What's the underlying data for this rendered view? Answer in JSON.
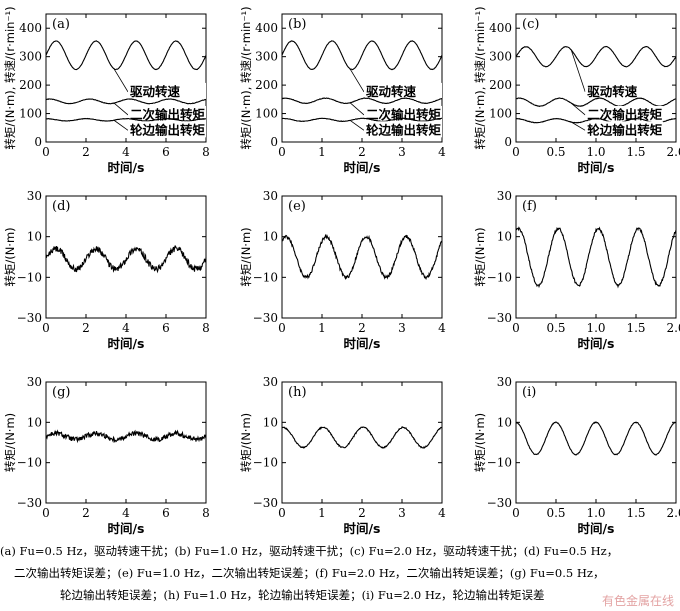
{
  "chart_data": [
    {
      "type": "line",
      "panel_label": "(a)",
      "xlabel": "时间/s",
      "ylabel": "转矩/(N·m), 转速/(r·min⁻¹)",
      "xlim": [
        0,
        8
      ],
      "ylim": [
        0,
        450
      ],
      "xticks": [
        "0",
        "2",
        "4",
        "6",
        "8"
      ],
      "yticks": [
        "0",
        "100",
        "200",
        "300",
        "400"
      ],
      "series": [
        {
          "name": "驱动转速",
          "kind": "sine",
          "offset": 305,
          "amplitude": 50,
          "freq": 0.5,
          "phase": 0
        },
        {
          "name": "二次输出转矩",
          "kind": "sine",
          "offset": 143,
          "amplitude": 8,
          "freq": 0.5,
          "phase": 1.0
        },
        {
          "name": "轮边输出转矩",
          "kind": "sine",
          "offset": 78,
          "amplitude": 4,
          "freq": 0.5,
          "phase": 1.5
        }
      ]
    },
    {
      "type": "line",
      "panel_label": "(b)",
      "xlabel": "时间/s",
      "ylabel": "转矩/(N·m), 转速/(r·min⁻¹)",
      "xlim": [
        0,
        4
      ],
      "ylim": [
        0,
        450
      ],
      "xticks": [
        "0",
        "1",
        "2",
        "3",
        "4"
      ],
      "yticks": [
        "0",
        "100",
        "200",
        "300",
        "400"
      ],
      "series": [
        {
          "name": "驱动转速",
          "kind": "sine",
          "offset": 305,
          "amplitude": 50,
          "freq": 1.0,
          "phase": 0
        },
        {
          "name": "二次输出转矩",
          "kind": "sine",
          "offset": 145,
          "amplitude": 9,
          "freq": 1.0,
          "phase": 1.0
        },
        {
          "name": "轮边输出转矩",
          "kind": "sine",
          "offset": 78,
          "amplitude": 5,
          "freq": 1.0,
          "phase": 1.5
        }
      ]
    },
    {
      "type": "line",
      "panel_label": "(c)",
      "xlabel": "时间/s",
      "ylabel": "转矩/(N·m), 转速/(r·min⁻¹)",
      "xlim": [
        0,
        2
      ],
      "ylim": [
        0,
        450
      ],
      "xticks": [
        "0",
        "0.5",
        "1.0",
        "1.5",
        "2.0"
      ],
      "yticks": [
        "0",
        "100",
        "200",
        "300",
        "400"
      ],
      "series": [
        {
          "name": "驱动转速",
          "kind": "sine",
          "offset": 300,
          "amplitude": 35,
          "freq": 2.0,
          "phase": 0
        },
        {
          "name": "二次输出转矩",
          "kind": "sine",
          "offset": 140,
          "amplitude": 14,
          "freq": 2.0,
          "phase": 1.0
        },
        {
          "name": "轮边输出转矩",
          "kind": "sine",
          "offset": 75,
          "amplitude": 7,
          "freq": 2.0,
          "phase": 1.5
        }
      ]
    },
    {
      "type": "line",
      "panel_label": "(d)",
      "xlabel": "时间/s",
      "ylabel": "转矩/(N·m)",
      "xlim": [
        0,
        8
      ],
      "ylim": [
        -30,
        30
      ],
      "xticks": [
        "0",
        "2",
        "4",
        "6",
        "8"
      ],
      "yticks": [
        "-30",
        "-10",
        "10",
        "30"
      ],
      "series": [
        {
          "name": "",
          "kind": "sine",
          "offset": -1,
          "amplitude": 5,
          "freq": 0.5,
          "phase": 0,
          "noise": 1.5
        }
      ]
    },
    {
      "type": "line",
      "panel_label": "(e)",
      "xlabel": "时间/s",
      "ylabel": "转矩/(N·m)",
      "xlim": [
        0,
        4
      ],
      "ylim": [
        -30,
        30
      ],
      "xticks": [
        "0",
        "1",
        "2",
        "3",
        "4"
      ],
      "yticks": [
        "-30",
        "-10",
        "10",
        "30"
      ],
      "series": [
        {
          "name": "",
          "kind": "sine",
          "offset": 0,
          "amplitude": 10,
          "freq": 1.0,
          "phase": 0.9,
          "noise": 0.8
        }
      ]
    },
    {
      "type": "line",
      "panel_label": "(f)",
      "xlabel": "时间/s",
      "ylabel": "转矩/(N·m)",
      "xlim": [
        0,
        2
      ],
      "ylim": [
        -30,
        30
      ],
      "xticks": [
        "0",
        "0.5",
        "1.0",
        "1.5",
        "2.0"
      ],
      "yticks": [
        "-30",
        "-10",
        "10",
        "30"
      ],
      "series": [
        {
          "name": "",
          "kind": "sine",
          "offset": 0,
          "amplitude": 14,
          "freq": 2.0,
          "phase": 1.2,
          "noise": 0.6
        }
      ]
    },
    {
      "type": "line",
      "panel_label": "(g)",
      "xlabel": "时间/s",
      "ylabel": "转矩/(N·m)",
      "xlim": [
        0,
        8
      ],
      "ylim": [
        -30,
        30
      ],
      "xticks": [
        "0",
        "2",
        "4",
        "6",
        "8"
      ],
      "yticks": [
        "-30",
        "-10",
        "10",
        "30"
      ],
      "series": [
        {
          "name": "",
          "kind": "sine",
          "offset": 3,
          "amplitude": 1.5,
          "freq": 0.5,
          "phase": 0,
          "noise": 1.2
        }
      ]
    },
    {
      "type": "line",
      "panel_label": "(h)",
      "xlabel": "时间/s",
      "ylabel": "转矩/(N·m)",
      "xlim": [
        0,
        4
      ],
      "ylim": [
        -30,
        30
      ],
      "xticks": [
        "0",
        "1",
        "2",
        "3",
        "4"
      ],
      "yticks": [
        "-30",
        "-10",
        "10",
        "30"
      ],
      "series": [
        {
          "name": "",
          "kind": "sine",
          "offset": 2.5,
          "amplitude": 5,
          "freq": 1.0,
          "phase": 1.4,
          "noise": 0.3
        }
      ]
    },
    {
      "type": "line",
      "panel_label": "(i)",
      "xlabel": "时间/s",
      "ylabel": "转矩/(N·m)",
      "xlim": [
        0,
        2
      ],
      "ylim": [
        -30,
        30
      ],
      "xticks": [
        "0",
        "0.5",
        "1.0",
        "1.5",
        "2.0"
      ],
      "yticks": [
        "-30",
        "-10",
        "10",
        "30"
      ],
      "series": [
        {
          "name": "",
          "kind": "sine",
          "offset": 2,
          "amplitude": 8,
          "freq": 2.0,
          "phase": 1.6,
          "noise": 0.2
        }
      ]
    }
  ],
  "caption": {
    "line1": "(a) Fu=0.5 Hz，驱动转速干扰；(b) Fu=1.0 Hz，驱动转速干扰；(c) Fu=2.0 Hz，驱动转速干扰；(d) Fu=0.5 Hz，",
    "line2": "二次输出转矩误差；(e) Fu=1.0 Hz，二次输出转矩误差；(f) Fu=2.0 Hz，二次输出转矩误差；(g) Fu=0.5 Hz，",
    "line3": "轮边输出转矩误差；(h) Fu=1.0 Hz，轮边输出转矩误差；(i) Fu=2.0 Hz，轮边输出转矩误差"
  },
  "watermark": "有色金属在线"
}
